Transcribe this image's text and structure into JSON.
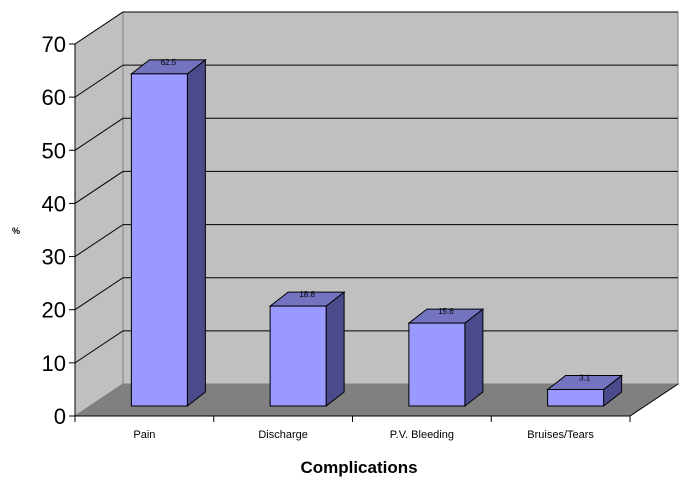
{
  "chart_data": {
    "type": "bar",
    "title": "",
    "xlabel": "Complications",
    "ylabel": "%",
    "categories": [
      "Pain",
      "Discharge",
      "P.V. Bleeding",
      "Bruises/Tears"
    ],
    "values": [
      62.5,
      18.8,
      15.6,
      3.1
    ],
    "data_labels": [
      "62.5",
      "18.8",
      "15.6",
      "3.1"
    ],
    "ylim": [
      0,
      70
    ],
    "yticks": [
      "0",
      "10",
      "20",
      "30",
      "40",
      "50",
      "60",
      "70"
    ],
    "grid": true,
    "legend": "none",
    "style": "3d-column",
    "colors": {
      "bar_front": "#9999ff",
      "bar_side": "#4b4b8c",
      "bar_top": "#7373c0",
      "back_wall": "#c0c0c0",
      "side_wall": "#c0c0c0",
      "floor": "#808080",
      "gridline": "#000000"
    }
  }
}
